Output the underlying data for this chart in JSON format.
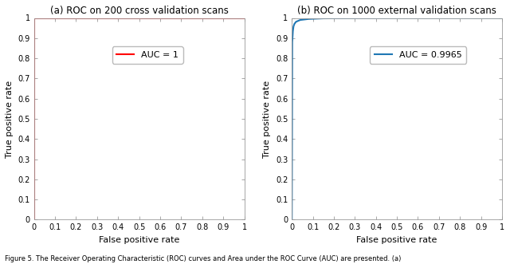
{
  "title_left": "(a) ROC on 200 cross validation scans",
  "title_right": "(b) ROC on 1000 external validation scans",
  "xlabel": "False positive rate",
  "ylabel": "True positive rate",
  "xlim": [
    0,
    1
  ],
  "ylim": [
    0,
    1
  ],
  "xticks": [
    0,
    0.1,
    0.2,
    0.3,
    0.4,
    0.5,
    0.6,
    0.7,
    0.8,
    0.9,
    1
  ],
  "yticks": [
    0,
    0.1,
    0.2,
    0.3,
    0.4,
    0.5,
    0.6,
    0.7,
    0.8,
    0.9,
    1
  ],
  "legend_left": "AUC = 1",
  "legend_right": "AUC = 0.9965",
  "line_color_left": "#FF0000",
  "line_color_right": "#1F77B4",
  "line_width": 1.5,
  "caption": "Figure 5. The Receiver Operating Characteristic (ROC) curves and Area under the ROC Curve (AUC) are presented. (a)",
  "background_color": "#FFFFFF",
  "title_fontsize": 8.5,
  "axis_fontsize": 8,
  "tick_fontsize": 7,
  "legend_fontsize": 8,
  "caption_fontsize": 6
}
